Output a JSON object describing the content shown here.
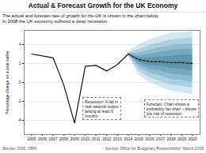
{
  "chart_data": {
    "type": "fan",
    "title": "Actual & Forecast Growth for the UK Economy",
    "subtitle": [
      "The actual and forecast rate of growth for the UK is shown in the chart below.",
      "In 2008 the UK economy suffered a deep recession."
    ],
    "y_label": "Percentage change on a year earlier",
    "source": [
      "Source: ONS, OBR",
      "Source: Office for Budgetary Responsibility, March 2016"
    ],
    "annotations": [
      "Recession: A fall in\nreal national output\nlasting at least 6\nmonths",
      "Forecast: Chart shows a\nprobability fan chart – shows\nlow risk of recession"
    ],
    "xlim": [
      2004.3,
      2020.7
    ],
    "xticks": [
      2005,
      2006,
      2007,
      2008,
      2009,
      2010,
      2011,
      2012,
      2013,
      2014,
      2015,
      2016,
      2017,
      2018,
      2019,
      2020
    ],
    "ylim": [
      -5.5,
      5.5
    ],
    "yticks": [
      -4,
      -2,
      0,
      2,
      4
    ],
    "grid": true,
    "series": [
      {
        "type": "area",
        "color": "#6ab0cc",
        "x": [
          2014,
          2015,
          2016,
          2017,
          2018,
          2019,
          2020
        ],
        "lower": [
          2.8,
          0.8,
          0.0,
          -0.5,
          -0.9,
          -1.1,
          -1.3
        ],
        "upper": [
          3.2,
          4.0,
          4.5,
          4.9,
          5.2,
          5.3,
          5.4
        ]
      },
      {
        "type": "area",
        "color": "#5aa0bc",
        "x": [
          2014,
          2015,
          2016,
          2017,
          2018,
          2019,
          2020
        ],
        "lower": [
          2.9,
          1.2,
          0.5,
          0.1,
          -0.3,
          -0.4,
          -0.6
        ],
        "upper": [
          3.1,
          3.5,
          3.9,
          4.2,
          4.5,
          4.6,
          4.7
        ]
      },
      {
        "type": "area",
        "color": "#4a90ac",
        "x": [
          2014,
          2015,
          2016,
          2017,
          2018,
          2019,
          2020
        ],
        "lower": [
          2.95,
          1.6,
          1.0,
          0.7,
          0.3,
          0.2,
          0.0
        ],
        "upper": [
          3.05,
          3.1,
          3.4,
          3.7,
          3.9,
          4.0,
          4.1
        ]
      },
      {
        "type": "area",
        "color": "#3a7a9c",
        "x": [
          2014,
          2015,
          2016,
          2017,
          2018,
          2019,
          2020
        ],
        "lower": [
          2.98,
          1.9,
          1.4,
          1.2,
          0.9,
          0.8,
          0.6
        ],
        "upper": [
          3.02,
          2.8,
          3.0,
          3.2,
          3.4,
          3.5,
          3.5
        ]
      },
      {
        "type": "area",
        "color": "#2a6a8c",
        "x": [
          2014,
          2015,
          2016,
          2017,
          2018,
          2019,
          2020
        ],
        "lower": [
          2.99,
          2.1,
          1.8,
          1.7,
          1.5,
          1.4,
          1.2
        ],
        "upper": [
          3.01,
          2.6,
          2.6,
          2.7,
          2.8,
          2.9,
          2.9
        ]
      },
      {
        "type": "line",
        "color": "#111111",
        "line_style": "solid",
        "x": [
          2005,
          2006,
          2007,
          2008,
          2009,
          2010,
          2011,
          2012,
          2013,
          2014
        ],
        "values": [
          3.0,
          2.8,
          2.6,
          -0.3,
          -4.3,
          1.7,
          1.8,
          1.2,
          1.9,
          3.0
        ]
      },
      {
        "type": "line",
        "color": "#111111",
        "line_style": "dashed",
        "x": [
          2014,
          2015,
          2016,
          2017,
          2018,
          2019,
          2020
        ],
        "values": [
          3.0,
          2.4,
          2.2,
          2.2,
          2.1,
          2.1,
          2.0
        ]
      }
    ]
  }
}
